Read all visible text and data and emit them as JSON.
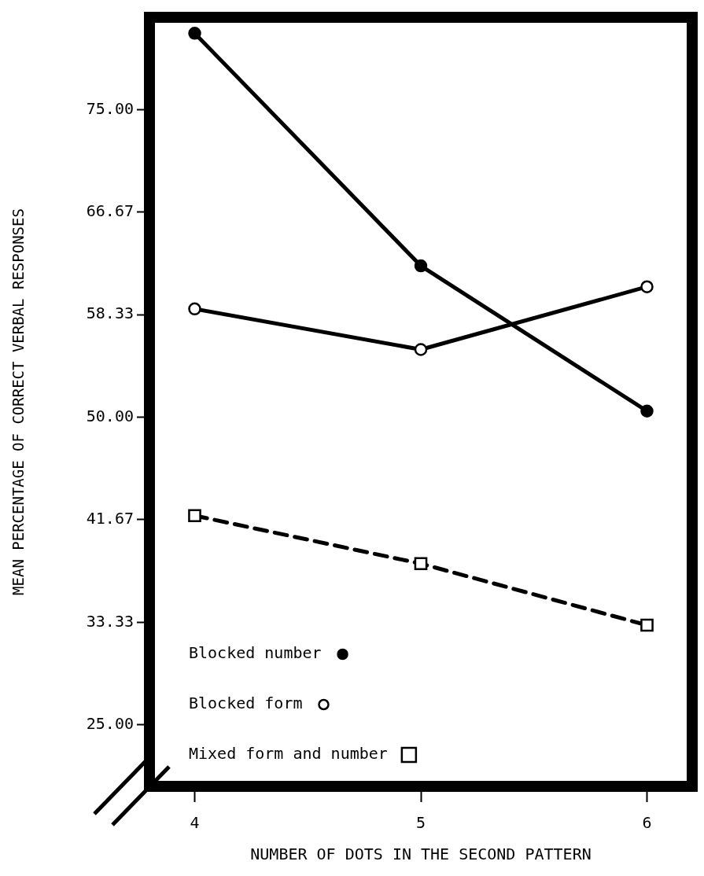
{
  "chart_data": {
    "type": "line",
    "xlabel": "NUMBER OF DOTS IN THE SECOND PATTERN",
    "ylabel": "MEAN PERCENTAGE OF CORRECT VERBAL RESPONSES",
    "x": [
      4,
      5,
      6
    ],
    "xlim": [
      3.8,
      6.2
    ],
    "xticks": [
      4,
      5,
      6
    ],
    "ylim": [
      20,
      82.5
    ],
    "yticks": [
      {
        "value": 25,
        "label": "25.00"
      },
      {
        "value": 33.33,
        "label": "33.33"
      },
      {
        "value": 41.67,
        "label": "41.67"
      },
      {
        "value": 50,
        "label": "50.00"
      },
      {
        "value": 58.33,
        "label": "58.33"
      },
      {
        "value": 66.67,
        "label": "66.67"
      },
      {
        "value": 75,
        "label": "75.00"
      }
    ],
    "legend": "bottom left",
    "series": [
      {
        "name": "Blocked number",
        "color": "#000000",
        "marker": "circle",
        "colors": [
          "#000000",
          "#000000",
          "#000000"
        ],
        "line_style": "solid",
        "values": [
          81.2,
          62.3,
          50.5
        ]
      },
      {
        "name": "Blocked form",
        "color": "#000000",
        "marker": "circle",
        "colors": [
          "#ffffff",
          "#ffffff",
          "#ffffff"
        ],
        "line_style": "solid",
        "values": [
          58.8,
          55.5,
          60.6
        ]
      },
      {
        "name": "Mixed form and number",
        "color": "#000000",
        "marker": "square",
        "colors": [
          "#ffffff",
          "#ffffff",
          "#ffffff"
        ],
        "line_style": "dashed",
        "values": [
          42,
          38.1,
          33.1
        ]
      }
    ]
  }
}
